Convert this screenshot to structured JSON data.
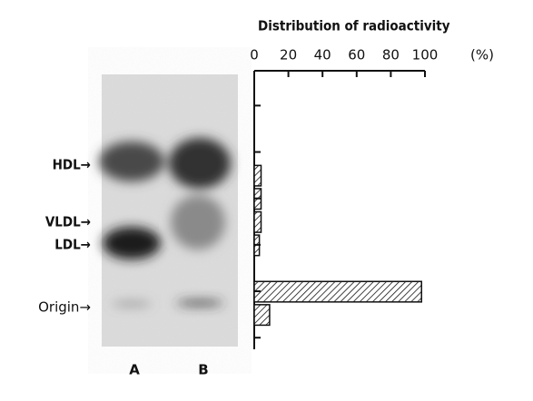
{
  "gel": {
    "bands": [
      "HDL→",
      "VLDL→",
      "LDL→",
      "Origin→"
    ],
    "lanes": [
      "A",
      "B"
    ]
  },
  "chart_data": {
    "type": "hbar",
    "title": "Distribution of radioactivity",
    "x_unit": "(%)",
    "categories": [
      null,
      null,
      null,
      null,
      null,
      null,
      null,
      null,
      null,
      null,
      null,
      null
    ],
    "values": [
      0,
      0,
      0,
      0,
      4,
      4,
      4,
      3,
      0,
      98,
      9,
      0
    ],
    "xlim": [
      0,
      100
    ],
    "xticks": [
      0,
      20,
      40,
      60,
      80,
      100
    ],
    "color": "#111"
  }
}
